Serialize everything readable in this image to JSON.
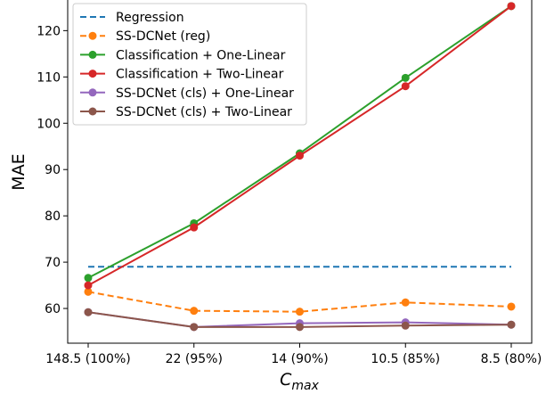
{
  "chart_data": {
    "type": "line",
    "title": "",
    "xlabel": "C",
    "xlabel_sub": "max",
    "ylabel": "MAE",
    "categories": [
      "148.5 (100%)",
      "22 (95%)",
      "14 (90%)",
      "10.5 (85%)",
      "8.5 (80%)"
    ],
    "ylim": [
      52.5,
      127
    ],
    "yticks": [
      60,
      70,
      80,
      90,
      100,
      110,
      120
    ],
    "grid": false,
    "legend_position": "top-left",
    "series": [
      {
        "name": "Regression",
        "color": "#1f77b4",
        "dashed": true,
        "markers": false,
        "values": [
          69,
          69,
          69,
          69,
          69
        ]
      },
      {
        "name": "SS-DCNet (reg)",
        "color": "#ff7f0e",
        "dashed": true,
        "markers": true,
        "values": [
          63.6,
          59.5,
          59.3,
          61.3,
          60.4
        ]
      },
      {
        "name": "Classification + One-Linear",
        "color": "#2ca02c",
        "dashed": false,
        "markers": true,
        "values": [
          66.6,
          78.4,
          93.5,
          109.8,
          125.3
        ]
      },
      {
        "name": "Classification + Two-Linear",
        "color": "#d62728",
        "dashed": false,
        "markers": true,
        "values": [
          65.0,
          77.5,
          93.0,
          108.0,
          125.3
        ]
      },
      {
        "name": "SS-DCNet (cls) + One-Linear",
        "color": "#9467bd",
        "dashed": false,
        "markers": true,
        "values": [
          59.2,
          56.0,
          56.8,
          57.0,
          56.5
        ]
      },
      {
        "name": "SS-DCNet (cls) + Two-Linear",
        "color": "#8c564b",
        "dashed": false,
        "markers": true,
        "values": [
          59.2,
          56.0,
          56.0,
          56.3,
          56.5
        ]
      }
    ]
  }
}
